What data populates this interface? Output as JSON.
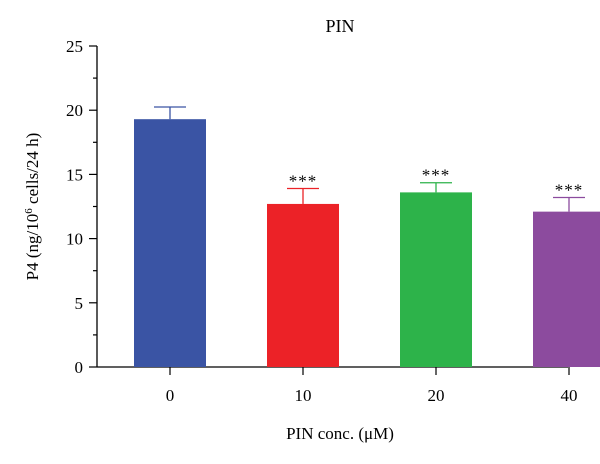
{
  "chart_data": {
    "type": "bar",
    "title": "PIN",
    "xlabel": "PIN conc. (μM)",
    "ylabel_parts": {
      "pre": "P4 (ng/10",
      "sup": "6",
      "post": " cells/24 h)"
    },
    "ylim": [
      0,
      25
    ],
    "yticks": [
      0,
      5,
      10,
      15,
      20,
      25
    ],
    "categories": [
      "0",
      "10",
      "20",
      "40"
    ],
    "values": [
      19.3,
      12.7,
      13.6,
      12.1
    ],
    "errors": [
      0.95,
      1.2,
      0.75,
      1.1
    ],
    "annotations": [
      "",
      "***",
      "***",
      "***"
    ],
    "colors": [
      "#3a54a4",
      "#ec2227",
      "#2db34a",
      "#8c4b9e"
    ],
    "grid": false
  }
}
